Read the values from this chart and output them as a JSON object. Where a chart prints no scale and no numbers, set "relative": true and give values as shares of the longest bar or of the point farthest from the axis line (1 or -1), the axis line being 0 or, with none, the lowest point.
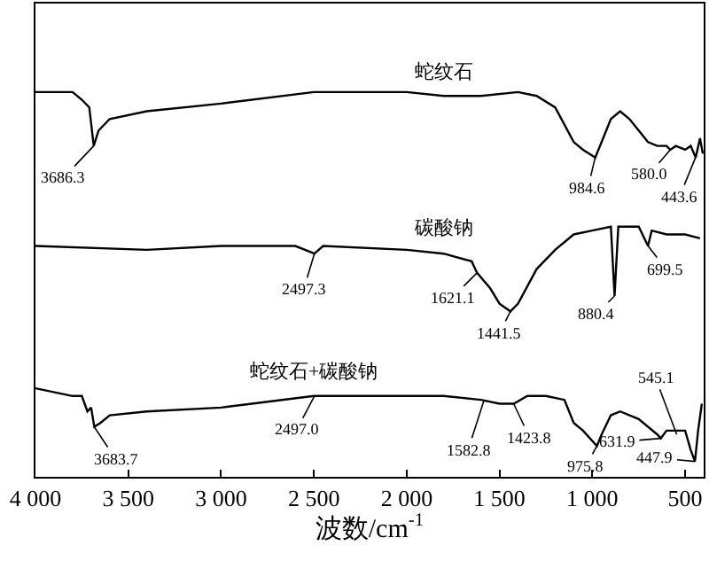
{
  "chart_data": {
    "type": "line",
    "relative": true,
    "xlabel": "波数/cm$^{-1}$",
    "xlim": [
      4000,
      400
    ],
    "xticks": [
      {
        "value": 4000,
        "label": "4 000"
      },
      {
        "value": 3500,
        "label": "3 500"
      },
      {
        "value": 3000,
        "label": "3 000"
      },
      {
        "value": 2500,
        "label": "2 500"
      },
      {
        "value": 2000,
        "label": "2 000"
      },
      {
        "value": 1500,
        "label": "1 500"
      },
      {
        "value": 1000,
        "label": "1 000"
      },
      {
        "value": 500,
        "label": "500"
      }
    ],
    "tick_labels": "x",
    "legend": false,
    "marker": "none",
    "line_style": "solid",
    "series": [
      {
        "name": "蛇纹石",
        "color": "#000000",
        "x": [
          4000,
          3800,
          3750,
          3710,
          3686,
          3660,
          3600,
          3400,
          3000,
          2500,
          2000,
          1800,
          1600,
          1400,
          1300,
          1200,
          1100,
          1050,
          984,
          950,
          900,
          850,
          800,
          750,
          700,
          650,
          600,
          580,
          550,
          500,
          470,
          443,
          420,
          405
        ],
        "values": [
          1.0,
          1.0,
          0.98,
          0.96,
          0.86,
          0.9,
          0.93,
          0.95,
          0.97,
          1.0,
          1.0,
          0.99,
          0.99,
          1.0,
          0.99,
          0.96,
          0.87,
          0.85,
          0.83,
          0.87,
          0.93,
          0.95,
          0.93,
          0.9,
          0.87,
          0.86,
          0.86,
          0.85,
          0.86,
          0.85,
          0.86,
          0.83,
          0.88,
          0.84
        ]
      },
      {
        "name": "碳酸钠",
        "color": "#000000",
        "x": [
          4000,
          3400,
          3000,
          2800,
          2600,
          2497,
          2450,
          2000,
          1800,
          1650,
          1621,
          1550,
          1500,
          1441,
          1400,
          1300,
          1200,
          1100,
          1000,
          900,
          880,
          860,
          750,
          700,
          680,
          600,
          500,
          420
        ],
        "values": [
          0.6,
          0.59,
          0.6,
          0.6,
          0.6,
          0.58,
          0.6,
          0.59,
          0.58,
          0.56,
          0.53,
          0.49,
          0.45,
          0.43,
          0.45,
          0.54,
          0.59,
          0.63,
          0.64,
          0.65,
          0.47,
          0.65,
          0.65,
          0.6,
          0.64,
          0.63,
          0.63,
          0.62
        ]
      },
      {
        "name": "蛇纹石+碳酸钠",
        "color": "#000000",
        "x": [
          4000,
          3800,
          3750,
          3720,
          3700,
          3683,
          3650,
          3600,
          3400,
          3000,
          2500,
          2000,
          1800,
          1600,
          1500,
          1423,
          1350,
          1250,
          1150,
          1100,
          1050,
          975,
          950,
          900,
          850,
          750,
          650,
          631,
          600,
          545,
          500,
          470,
          447,
          430,
          410
        ],
        "values": [
          0.23,
          0.21,
          0.21,
          0.17,
          0.18,
          0.13,
          0.14,
          0.16,
          0.17,
          0.18,
          0.21,
          0.21,
          0.21,
          0.2,
          0.19,
          0.19,
          0.21,
          0.21,
          0.2,
          0.14,
          0.12,
          0.08,
          0.11,
          0.16,
          0.17,
          0.15,
          0.11,
          0.1,
          0.12,
          0.12,
          0.12,
          0.07,
          0.04,
          0.12,
          0.19
        ]
      }
    ],
    "annotations": [
      {
        "text": "3686.3",
        "x": 3686.3,
        "y": 0.86
      },
      {
        "text": "984.6",
        "x": 984.6,
        "y": 0.83
      },
      {
        "text": "580.0",
        "x": 580.0,
        "y": 0.85
      },
      {
        "text": "443.6",
        "x": 443.6,
        "y": 0.83
      },
      {
        "text": "2497.3",
        "x": 2497.3,
        "y": 0.58
      },
      {
        "text": "1621.1",
        "x": 1621.1,
        "y": 0.53
      },
      {
        "text": "1441.5",
        "x": 1441.5,
        "y": 0.43
      },
      {
        "text": "880.4",
        "x": 880.4,
        "y": 0.47
      },
      {
        "text": "699.5",
        "x": 699.5,
        "y": 0.6
      },
      {
        "text": "3683.7",
        "x": 3683.7,
        "y": 0.13
      },
      {
        "text": "2497.0",
        "x": 2497.0,
        "y": 0.21
      },
      {
        "text": "1582.8",
        "x": 1582.8,
        "y": 0.2
      },
      {
        "text": "1423.8",
        "x": 1423.8,
        "y": 0.19
      },
      {
        "text": "975.8",
        "x": 975.8,
        "y": 0.08
      },
      {
        "text": "631.9",
        "x": 631.9,
        "y": 0.1
      },
      {
        "text": "545.1",
        "x": 545.1,
        "y": 0.11
      },
      {
        "text": "447.9",
        "x": 447.9,
        "y": 0.04
      }
    ]
  }
}
